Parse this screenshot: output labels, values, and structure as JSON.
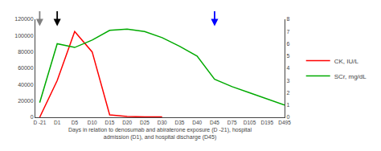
{
  "chart_data": {
    "type": "line",
    "categories": [
      "D -21",
      "D1",
      "D5",
      "D10",
      "D15",
      "D20",
      "D25",
      "D30",
      "D35",
      "D40",
      "D45",
      "D75",
      "D105",
      "D195",
      "D495"
    ],
    "series": [
      {
        "name": "CK, IU/L",
        "color": "#ff0000",
        "values": [
          0,
          45000,
          105000,
          80000,
          3000,
          1000,
          500,
          500,
          null,
          null,
          null,
          null,
          null,
          null,
          null
        ]
      },
      {
        "name": "SCr, mg/dL",
        "color": "#00aa00",
        "axis": "y2",
        "values": [
          1.2,
          6.0,
          5.7,
          6.3,
          7.1,
          7.2,
          7.0,
          6.5,
          5.8,
          5.0,
          3.1,
          2.5,
          2.0,
          1.5,
          1.0
        ]
      }
    ],
    "x_label": "Days in relation to denosumab and abiraterone exposure (D -21), hospital\nadmission (D1), and hospital discharge (D45)",
    "ylim": [
      0,
      120000
    ],
    "yticks": [
      0,
      20000,
      40000,
      60000,
      80000,
      100000,
      120000
    ],
    "y2lim": [
      0,
      8
    ],
    "y2ticks": [
      0,
      1,
      2,
      3,
      4,
      5,
      6,
      7,
      8
    ],
    "arrows": [
      {
        "category": "D -21",
        "color": "gray"
      },
      {
        "category": "D1",
        "color": "black"
      },
      {
        "category": "D45",
        "color": "blue"
      }
    ],
    "legend": "right",
    "grid": false
  }
}
